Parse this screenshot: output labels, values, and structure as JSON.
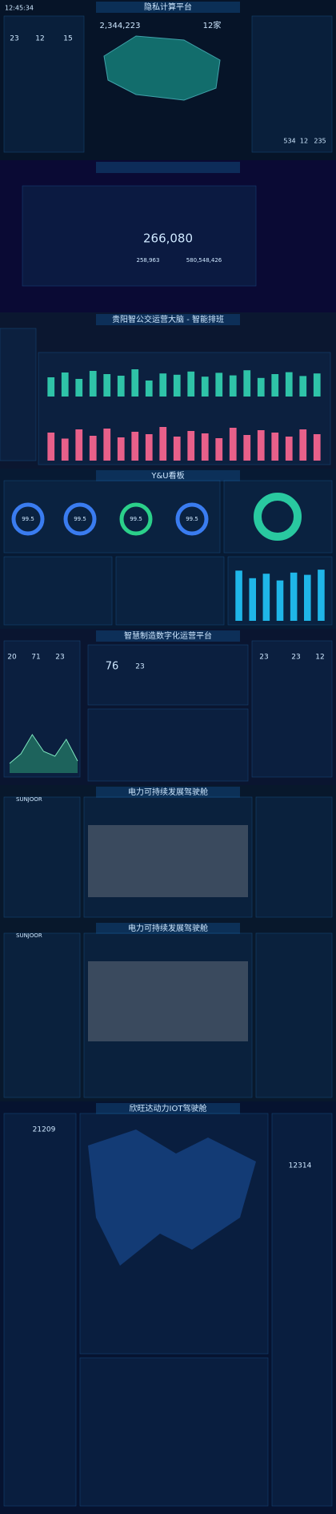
{
  "screens": [
    {
      "title": "隐私计算平台",
      "time": "12:45:34",
      "stats": [
        "2,344,223",
        "12家"
      ],
      "kpis": [
        "23",
        "12",
        "15"
      ],
      "side_kpis": [
        "534",
        "12",
        "235"
      ]
    },
    {
      "stats": [
        "266,080",
        "258,963",
        "580,548,426"
      ]
    },
    {
      "title": "贵阳智公交运营大脑 - 智能排班"
    },
    {
      "title": "Y&U看板",
      "gauges": [
        "99.5",
        "99.5",
        "99.5",
        "99.5"
      ]
    },
    {
      "title": "智慧制造数字化运营平台",
      "kpis": [
        "20",
        "71",
        "23",
        "76",
        "23",
        "23",
        "23",
        "12"
      ]
    },
    {
      "title": "电力可持续发展驾驶舱",
      "brand": "SUNJOOR"
    },
    {
      "title": "电力可持续发展驾驶舱",
      "brand": "SUNJOOR"
    },
    {
      "title": "欣旺达动力IOT驾驶舱",
      "kpis": [
        "21209",
        "12314"
      ]
    }
  ],
  "charts": [
    {
      "type": "bar",
      "categories": [
        null,
        null,
        null,
        null,
        null,
        null,
        null,
        null,
        null,
        null,
        null,
        null,
        null,
        null,
        null,
        null,
        null,
        null,
        null,
        null
      ],
      "values": [
        60,
        75,
        55,
        80,
        70,
        65,
        85,
        50,
        72,
        68,
        78,
        62,
        74,
        66,
        82,
        58,
        70,
        76,
        64,
        72
      ],
      "ylim": [
        0,
        100
      ],
      "color": "#2fc3a8"
    },
    {
      "type": "bar",
      "categories": [
        null,
        null,
        null,
        null,
        null,
        null,
        null,
        null,
        null,
        null,
        null,
        null,
        null,
        null,
        null,
        null,
        null,
        null,
        null,
        null
      ],
      "values": [
        70,
        55,
        78,
        62,
        80,
        58,
        72,
        66,
        84,
        60,
        74,
        68,
        56,
        82,
        64,
        76,
        70,
        60,
        78,
        66
      ],
      "ylim": [
        0,
        100
      ],
      "color": "#e8608a"
    },
    {
      "type": "bar",
      "categories": [
        null,
        null,
        null,
        null,
        null,
        null,
        null
      ],
      "values": [
        4477,
        3800,
        4200,
        3600,
        4300,
        4100,
        4562
      ],
      "ylim": [
        0,
        5000
      ],
      "color": "#1fb6e8"
    },
    {
      "type": "area",
      "categories": [
        null,
        null,
        null,
        null,
        null,
        null,
        null
      ],
      "values": [
        20,
        40,
        80,
        45,
        35,
        70,
        25
      ],
      "ylim": [
        0,
        100
      ],
      "color": "#2fa87a"
    }
  ]
}
